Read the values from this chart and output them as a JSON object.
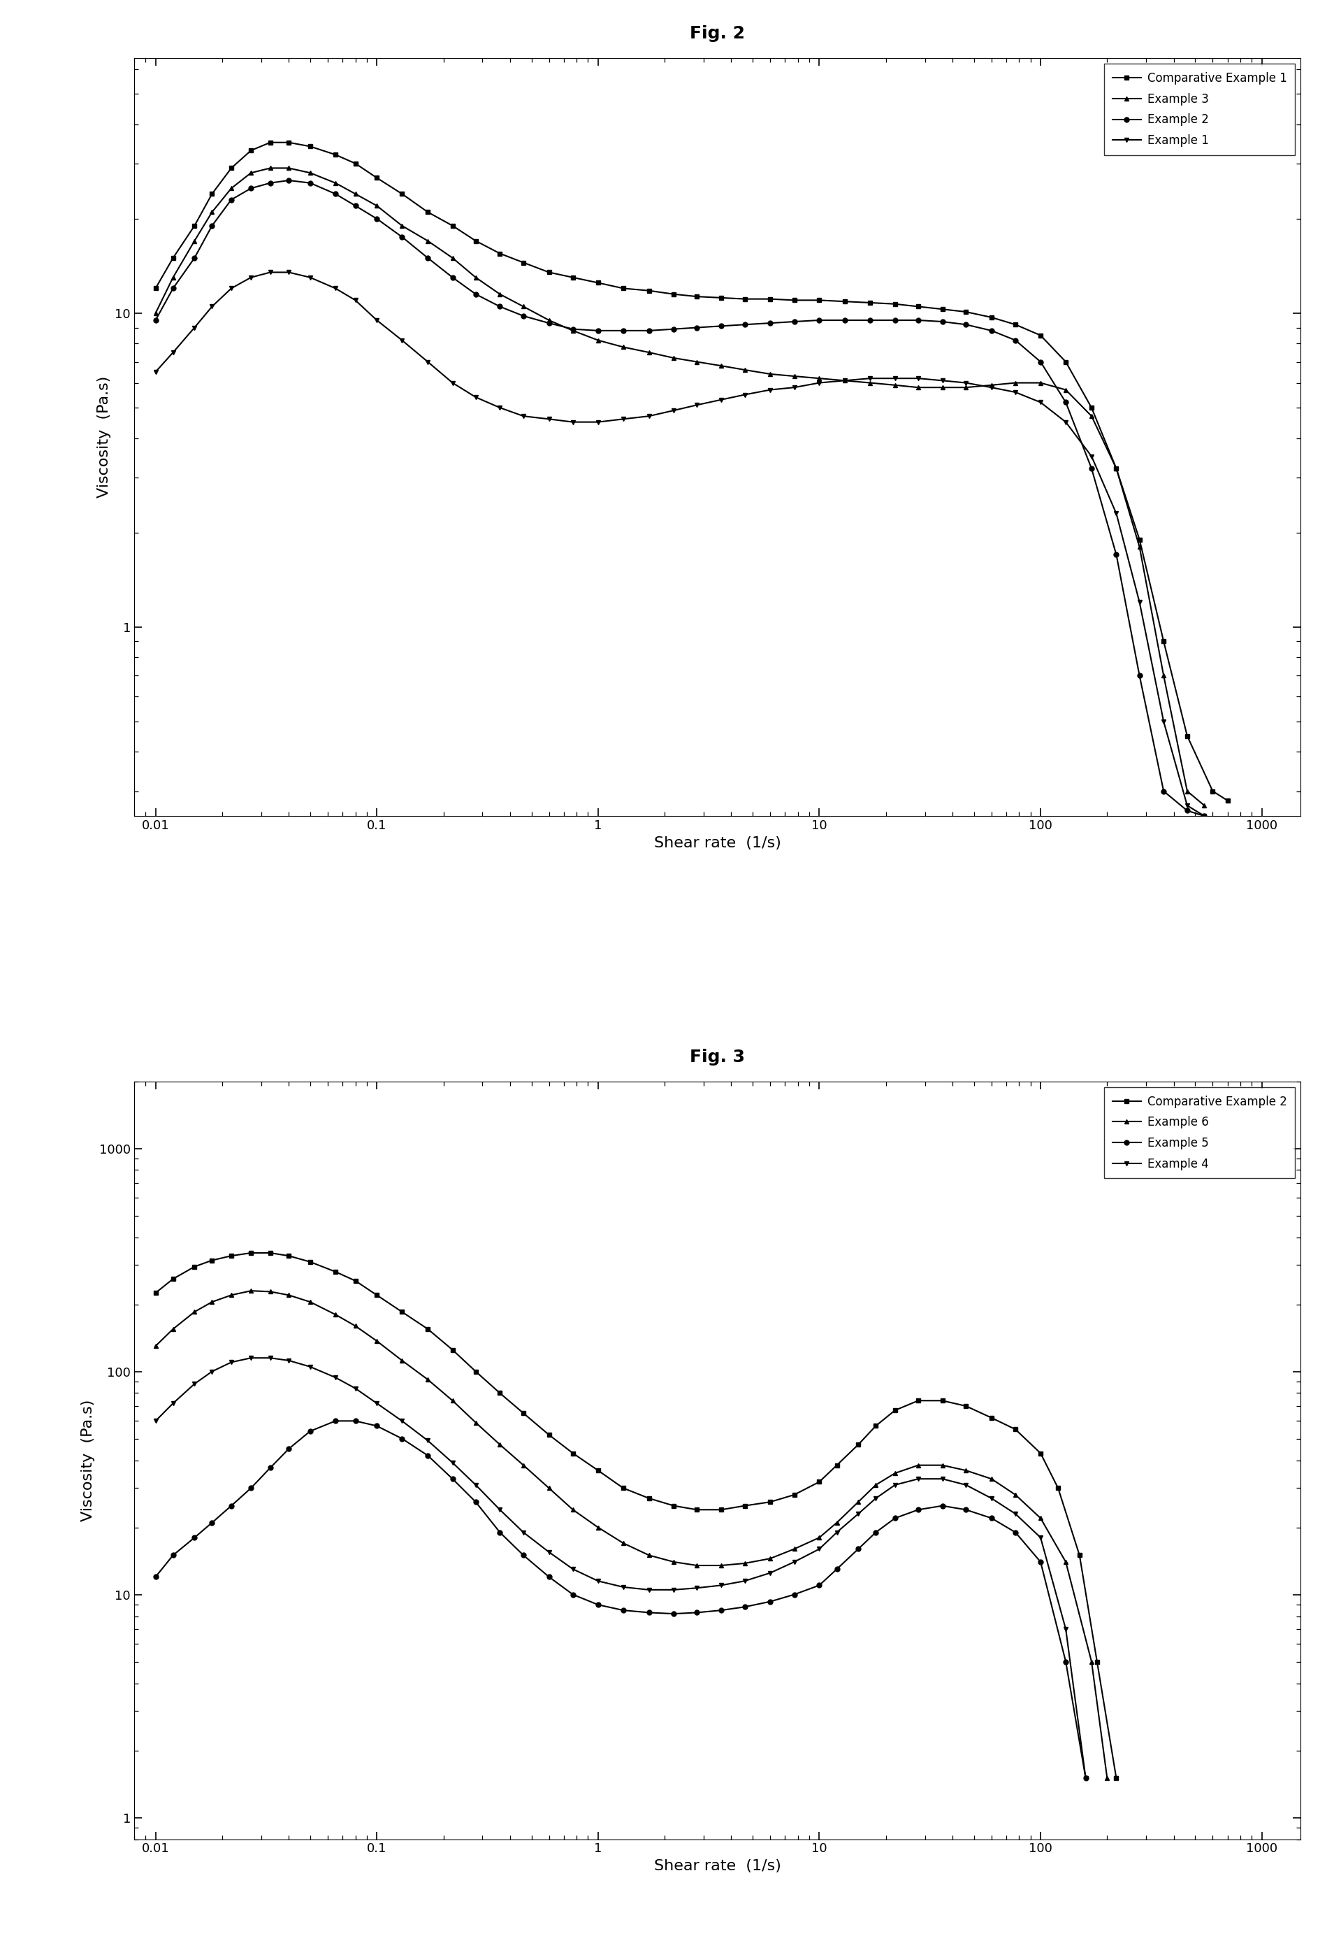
{
  "fig2_title": "Fig. 2",
  "fig3_title": "Fig. 3",
  "xlabel1": "Shear rate  (1/s)",
  "xlabel2": "Shear rate  (1/s)",
  "ylabel1": "Viscosity  (Pa.s)",
  "ylabel2": "Viscosity  (Pa.s)",
  "fig2_legend": [
    "Comparative Example 1",
    "Example 3",
    "Example 2",
    "Example 1"
  ],
  "fig3_legend": [
    "Comparative Example 2",
    "Example 6",
    "Example 5",
    "Example 4"
  ],
  "markers": [
    "s",
    "^",
    "o",
    "v"
  ],
  "line_color": "#000000",
  "background_color": "#ffffff",
  "fig2_xlim": [
    0.008,
    1500
  ],
  "fig2_ylim": [
    0.25,
    65
  ],
  "fig3_xlim": [
    0.008,
    1500
  ],
  "fig3_ylim": [
    0.8,
    2000
  ],
  "fig2_comp1_x": [
    0.01,
    0.012,
    0.015,
    0.018,
    0.022,
    0.027,
    0.033,
    0.04,
    0.05,
    0.065,
    0.08,
    0.1,
    0.13,
    0.17,
    0.22,
    0.28,
    0.36,
    0.46,
    0.6,
    0.77,
    1.0,
    1.3,
    1.7,
    2.2,
    2.8,
    3.6,
    4.6,
    6.0,
    7.7,
    10,
    13,
    17,
    22,
    28,
    36,
    46,
    60,
    77,
    100,
    130,
    170,
    220,
    280,
    360,
    460,
    600,
    700
  ],
  "fig2_comp1_y": [
    12,
    15,
    19,
    24,
    29,
    33,
    35,
    35,
    34,
    32,
    30,
    27,
    24,
    21,
    19,
    17,
    15.5,
    14.5,
    13.5,
    13,
    12.5,
    12,
    11.8,
    11.5,
    11.3,
    11.2,
    11.1,
    11.1,
    11.0,
    11.0,
    10.9,
    10.8,
    10.7,
    10.5,
    10.3,
    10.1,
    9.7,
    9.2,
    8.5,
    7.0,
    5.0,
    3.2,
    1.9,
    0.9,
    0.45,
    0.3,
    0.28
  ],
  "fig2_ex3_x": [
    0.01,
    0.012,
    0.015,
    0.018,
    0.022,
    0.027,
    0.033,
    0.04,
    0.05,
    0.065,
    0.08,
    0.1,
    0.13,
    0.17,
    0.22,
    0.28,
    0.36,
    0.46,
    0.6,
    0.77,
    1.0,
    1.3,
    1.7,
    2.2,
    2.8,
    3.6,
    4.6,
    6.0,
    7.7,
    10,
    13,
    17,
    22,
    28,
    36,
    46,
    60,
    77,
    100,
    130,
    170,
    220,
    280,
    360,
    460,
    550
  ],
  "fig2_ex3_y": [
    10,
    13,
    17,
    21,
    25,
    28,
    29,
    29,
    28,
    26,
    24,
    22,
    19,
    17,
    15,
    13,
    11.5,
    10.5,
    9.5,
    8.8,
    8.2,
    7.8,
    7.5,
    7.2,
    7.0,
    6.8,
    6.6,
    6.4,
    6.3,
    6.2,
    6.1,
    6.0,
    5.9,
    5.8,
    5.8,
    5.8,
    5.9,
    6.0,
    6.0,
    5.7,
    4.7,
    3.2,
    1.8,
    0.7,
    0.3,
    0.27
  ],
  "fig2_ex2_x": [
    0.01,
    0.012,
    0.015,
    0.018,
    0.022,
    0.027,
    0.033,
    0.04,
    0.05,
    0.065,
    0.08,
    0.1,
    0.13,
    0.17,
    0.22,
    0.28,
    0.36,
    0.46,
    0.6,
    0.77,
    1.0,
    1.3,
    1.7,
    2.2,
    2.8,
    3.6,
    4.6,
    6.0,
    7.7,
    10,
    13,
    17,
    22,
    28,
    36,
    46,
    60,
    77,
    100,
    130,
    170,
    220,
    280,
    360,
    460,
    550
  ],
  "fig2_ex2_y": [
    9.5,
    12,
    15,
    19,
    23,
    25,
    26,
    26.5,
    26,
    24,
    22,
    20,
    17.5,
    15,
    13,
    11.5,
    10.5,
    9.8,
    9.3,
    8.9,
    8.8,
    8.8,
    8.8,
    8.9,
    9.0,
    9.1,
    9.2,
    9.3,
    9.4,
    9.5,
    9.5,
    9.5,
    9.5,
    9.5,
    9.4,
    9.2,
    8.8,
    8.2,
    7.0,
    5.2,
    3.2,
    1.7,
    0.7,
    0.3,
    0.26,
    0.25
  ],
  "fig2_ex1_x": [
    0.01,
    0.012,
    0.015,
    0.018,
    0.022,
    0.027,
    0.033,
    0.04,
    0.05,
    0.065,
    0.08,
    0.1,
    0.13,
    0.17,
    0.22,
    0.28,
    0.36,
    0.46,
    0.6,
    0.77,
    1.0,
    1.3,
    1.7,
    2.2,
    2.8,
    3.6,
    4.6,
    6.0,
    7.7,
    10,
    13,
    17,
    22,
    28,
    36,
    46,
    60,
    77,
    100,
    130,
    170,
    220,
    280,
    360,
    460,
    550
  ],
  "fig2_ex1_y": [
    6.5,
    7.5,
    9.0,
    10.5,
    12,
    13,
    13.5,
    13.5,
    13,
    12,
    11,
    9.5,
    8.2,
    7.0,
    6.0,
    5.4,
    5.0,
    4.7,
    4.6,
    4.5,
    4.5,
    4.6,
    4.7,
    4.9,
    5.1,
    5.3,
    5.5,
    5.7,
    5.8,
    6.0,
    6.1,
    6.2,
    6.2,
    6.2,
    6.1,
    6.0,
    5.8,
    5.6,
    5.2,
    4.5,
    3.5,
    2.3,
    1.2,
    0.5,
    0.27,
    0.25
  ],
  "fig3_comp2_x": [
    0.01,
    0.012,
    0.015,
    0.018,
    0.022,
    0.027,
    0.033,
    0.04,
    0.05,
    0.065,
    0.08,
    0.1,
    0.13,
    0.17,
    0.22,
    0.28,
    0.36,
    0.46,
    0.6,
    0.77,
    1.0,
    1.3,
    1.7,
    2.2,
    2.8,
    3.6,
    4.6,
    6.0,
    7.7,
    10,
    12,
    15,
    18,
    22,
    28,
    36,
    46,
    60,
    77,
    100,
    120,
    150,
    180,
    220
  ],
  "fig3_comp2_y": [
    225,
    260,
    295,
    315,
    330,
    340,
    340,
    330,
    310,
    280,
    255,
    220,
    185,
    155,
    125,
    100,
    80,
    65,
    52,
    43,
    36,
    30,
    27,
    25,
    24,
    24,
    25,
    26,
    28,
    32,
    38,
    47,
    57,
    67,
    74,
    74,
    70,
    62,
    55,
    43,
    30,
    15,
    5,
    1.5
  ],
  "fig3_ex6_x": [
    0.01,
    0.012,
    0.015,
    0.018,
    0.022,
    0.027,
    0.033,
    0.04,
    0.05,
    0.065,
    0.08,
    0.1,
    0.13,
    0.17,
    0.22,
    0.28,
    0.36,
    0.46,
    0.6,
    0.77,
    1.0,
    1.3,
    1.7,
    2.2,
    2.8,
    3.6,
    4.6,
    6.0,
    7.7,
    10,
    12,
    15,
    18,
    22,
    28,
    36,
    46,
    60,
    77,
    100,
    130,
    170,
    200
  ],
  "fig3_ex6_y": [
    130,
    155,
    185,
    205,
    220,
    230,
    228,
    220,
    205,
    180,
    160,
    137,
    112,
    92,
    74,
    59,
    47,
    38,
    30,
    24,
    20,
    17,
    15,
    14,
    13.5,
    13.5,
    13.8,
    14.5,
    16,
    18,
    21,
    26,
    31,
    35,
    38,
    38,
    36,
    33,
    28,
    22,
    14,
    5,
    1.5
  ],
  "fig3_ex5_x": [
    0.01,
    0.012,
    0.015,
    0.018,
    0.022,
    0.027,
    0.033,
    0.04,
    0.05,
    0.065,
    0.08,
    0.1,
    0.13,
    0.17,
    0.22,
    0.28,
    0.36,
    0.46,
    0.6,
    0.77,
    1.0,
    1.3,
    1.7,
    2.2,
    2.8,
    3.6,
    4.6,
    6.0,
    7.7,
    10,
    12,
    15,
    18,
    22,
    28,
    36,
    46,
    60,
    77,
    100,
    130,
    160
  ],
  "fig3_ex5_y": [
    12,
    15,
    18,
    21,
    25,
    30,
    37,
    45,
    54,
    60,
    60,
    57,
    50,
    42,
    33,
    26,
    19,
    15,
    12,
    10,
    9.0,
    8.5,
    8.3,
    8.2,
    8.3,
    8.5,
    8.8,
    9.3,
    10,
    11,
    13,
    16,
    19,
    22,
    24,
    25,
    24,
    22,
    19,
    14,
    5,
    1.5
  ],
  "fig3_ex4_x": [
    0.01,
    0.012,
    0.015,
    0.018,
    0.022,
    0.027,
    0.033,
    0.04,
    0.05,
    0.065,
    0.08,
    0.1,
    0.13,
    0.17,
    0.22,
    0.28,
    0.36,
    0.46,
    0.6,
    0.77,
    1.0,
    1.3,
    1.7,
    2.2,
    2.8,
    3.6,
    4.6,
    6.0,
    7.7,
    10,
    12,
    15,
    18,
    22,
    28,
    36,
    46,
    60,
    77,
    100,
    130,
    160
  ],
  "fig3_ex4_y": [
    60,
    72,
    88,
    100,
    110,
    115,
    115,
    112,
    105,
    94,
    84,
    72,
    60,
    49,
    39,
    31,
    24,
    19,
    15.5,
    13,
    11.5,
    10.8,
    10.5,
    10.5,
    10.7,
    11,
    11.5,
    12.5,
    14,
    16,
    19,
    23,
    27,
    31,
    33,
    33,
    31,
    27,
    23,
    18,
    7,
    1.5
  ]
}
